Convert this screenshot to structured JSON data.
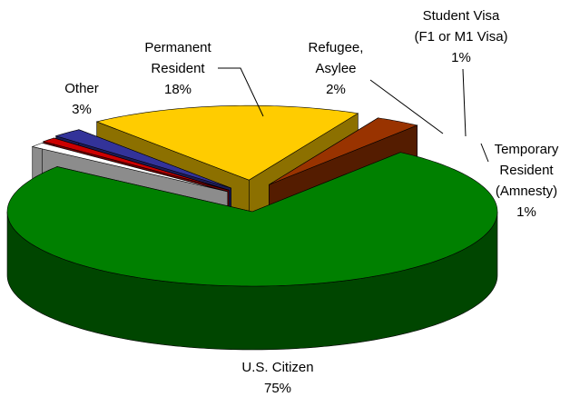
{
  "chart_data": {
    "type": "pie3d",
    "categories": [
      "U.S. Citizen",
      "Temporary\nResident\n(Amnesty)",
      "Student Visa\n(F1 or M1 Visa)",
      "Refugee,\nAsylee",
      "Permanent\nResident",
      "Other"
    ],
    "values": [
      75,
      1,
      1,
      2,
      18,
      3
    ],
    "value_labels": [
      "75%",
      "1%",
      "1%",
      "2%",
      "18%",
      "3%"
    ],
    "colors": [
      "#008000",
      "#ffffff",
      "#cc0000",
      "#333399",
      "#ffcc00",
      "#993300"
    ]
  }
}
